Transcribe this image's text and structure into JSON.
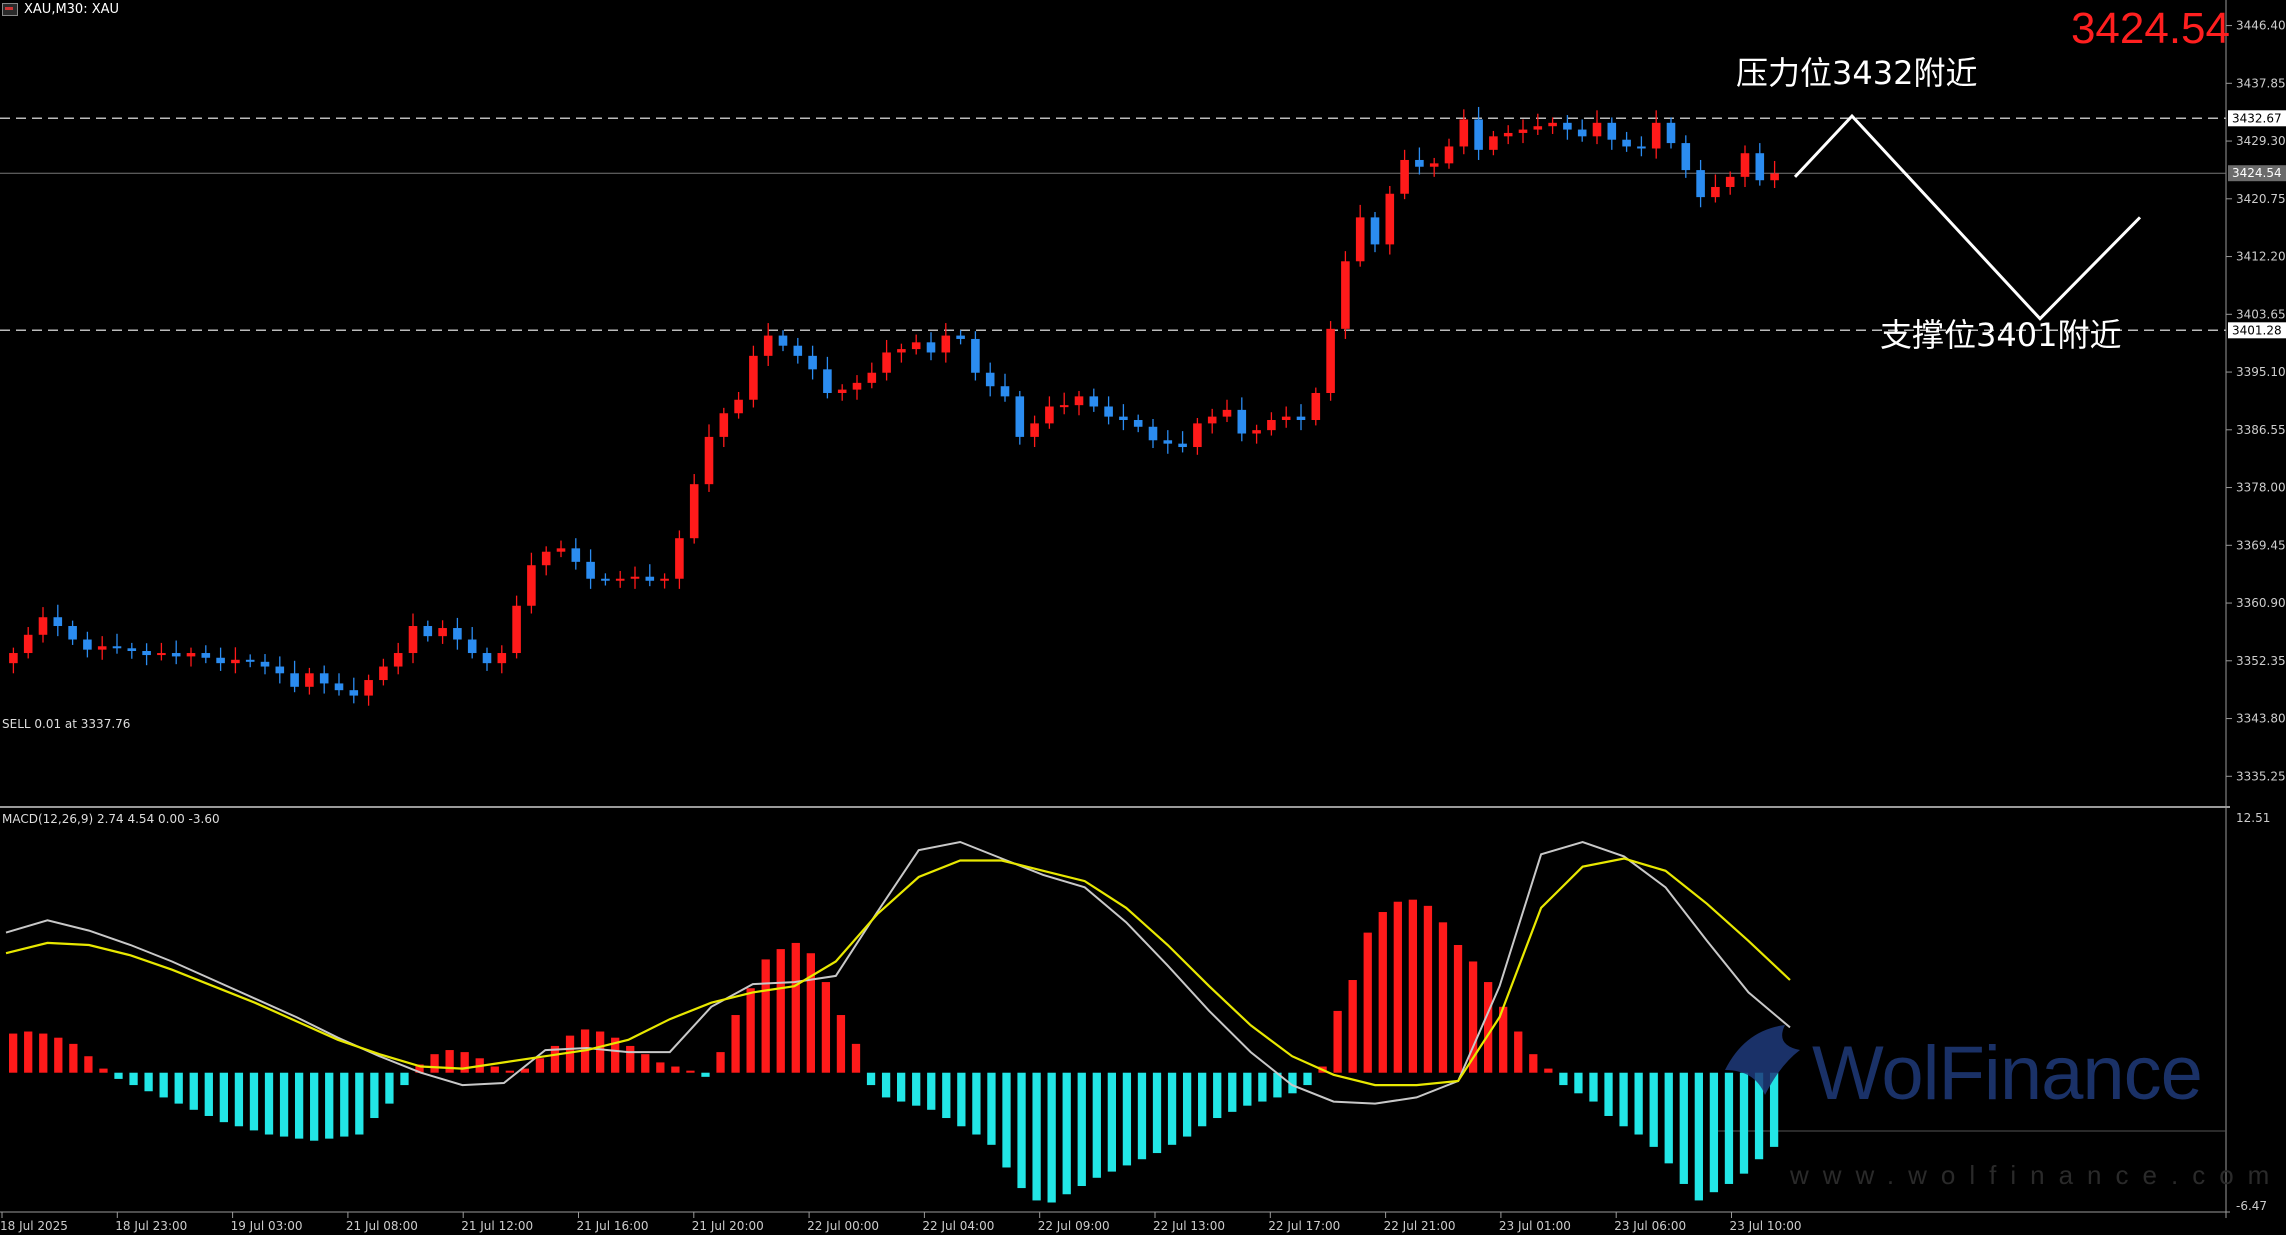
{
  "header": {
    "symbol_info": "XAU,M30: XAU",
    "current_price_large": "3424.54"
  },
  "annotations": {
    "resistance": "压力位3432附近",
    "support": "支撑位3401附近"
  },
  "order_label": "SELL 0.01 at 3337.76",
  "macd_label": "MACD(12,26,9) 2.74 4.54 0.00 -3.60",
  "watermark": {
    "brand": "WolFinance",
    "url": "www.wolfinance.com"
  },
  "colors": {
    "bull": "#ff1a1a",
    "bear": "#2b8cf0",
    "hist_pos": "#ff1a1a",
    "hist_neg": "#22e6e6",
    "macd_line": "#c8c8c8",
    "signal_line": "#e8e800"
  },
  "price_axis": {
    "labels": [
      "3446.40",
      "3437.85",
      "3429.30",
      "3420.75",
      "3412.20",
      "3403.65",
      "3395.10",
      "3386.55",
      "3378.00",
      "3369.45",
      "3360.90",
      "3352.35",
      "3343.80",
      "3335.25"
    ],
    "tags": {
      "resistance": "3432.67",
      "current": "3424.54",
      "support": "3401.28"
    }
  },
  "macd_axis": {
    "top": "12.51",
    "bottom": "-6.47"
  },
  "time_axis": [
    "18 Jul 2025",
    "18 Jul 23:00",
    "19 Jul 03:00",
    "21 Jul 08:00",
    "21 Jul 12:00",
    "21 Jul 16:00",
    "21 Jul 20:00",
    "22 Jul 00:00",
    "22 Jul 04:00",
    "22 Jul 09:00",
    "22 Jul 13:00",
    "22 Jul 17:00",
    "22 Jul 21:00",
    "23 Jul 01:00",
    "23 Jul 06:00",
    "23 Jul 10:00"
  ],
  "chart_data": {
    "type": "candlestick",
    "timeframe": "M30",
    "price_range": [
      3331.0,
      3449.0
    ],
    "levels": {
      "resistance": 3432.67,
      "current": 3424.54,
      "support": 3401.28
    },
    "closes": [
      3353.5,
      3356.2,
      3358.8,
      3357.5,
      3355.5,
      3354.0,
      3354.5,
      3354.2,
      3353.8,
      3353.2,
      3353.5,
      3353.0,
      3353.5,
      3352.8,
      3352.0,
      3352.5,
      3352.2,
      3351.5,
      3350.5,
      3348.5,
      3350.5,
      3349.0,
      3348.0,
      3347.2,
      3349.5,
      3351.5,
      3353.5,
      3357.5,
      3356.0,
      3357.2,
      3355.5,
      3353.5,
      3352.0,
      3353.5,
      3360.5,
      3366.5,
      3368.5,
      3369.0,
      3367.0,
      3364.5,
      3364.3,
      3364.5,
      3364.8,
      3364.2,
      3364.5,
      3370.5,
      3378.5,
      3385.5,
      3389.0,
      3391.0,
      3397.5,
      3400.5,
      3399.0,
      3397.5,
      3395.5,
      3392.0,
      3392.5,
      3393.5,
      3395.0,
      3398.0,
      3398.5,
      3399.5,
      3398.0,
      3400.5,
      3400.0,
      3395.0,
      3393.0,
      3391.5,
      3385.5,
      3387.5,
      3390.0,
      3390.2,
      3391.5,
      3390.0,
      3388.5,
      3388.0,
      3387.0,
      3385.0,
      3384.5,
      3384.0,
      3387.5,
      3388.5,
      3389.5,
      3386.0,
      3386.5,
      3388.0,
      3388.5,
      3388.0,
      3392.0,
      3401.5,
      3411.5,
      3418.0,
      3414.0,
      3421.5,
      3426.5,
      3425.5,
      3426.0,
      3428.5,
      3432.5,
      3428.0,
      3430.0,
      3430.5,
      3431.0,
      3431.5,
      3432.0,
      3431.0,
      3430.0,
      3432.0,
      3429.5,
      3428.5,
      3428.2,
      3432.0,
      3429.0,
      3425.0,
      3421.0,
      3422.5,
      3424.0,
      3427.5,
      3423.5,
      3424.5
    ],
    "opens_first": 3352.0,
    "time_labels": [
      "18 Jul 2025",
      "18 Jul 23:00",
      "19 Jul 03:00",
      "21 Jul 08:00",
      "21 Jul 12:00",
      "21 Jul 16:00",
      "21 Jul 20:00",
      "22 Jul 00:00",
      "22 Jul 04:00",
      "22 Jul 09:00",
      "22 Jul 13:00",
      "22 Jul 17:00",
      "22 Jul 21:00",
      "23 Jul 01:00",
      "23 Jul 06:00",
      "23 Jul 10:00"
    ],
    "projection_path": [
      3424.0,
      3433.0,
      3403.0,
      3418.0
    ],
    "macd": {
      "range": [
        -6.47,
        12.51
      ],
      "histogram": [
        1.9,
        2.0,
        1.9,
        1.7,
        1.4,
        0.8,
        0.2,
        -0.3,
        -0.6,
        -0.9,
        -1.2,
        -1.5,
        -1.8,
        -2.1,
        -2.4,
        -2.6,
        -2.8,
        -3.0,
        -3.1,
        -3.2,
        -3.3,
        -3.2,
        -3.1,
        -3.0,
        -2.2,
        -1.5,
        -0.6,
        0.4,
        0.9,
        1.1,
        1.0,
        0.7,
        0.3,
        0.1,
        0.2,
        0.7,
        1.3,
        1.8,
        2.1,
        2.0,
        1.7,
        1.3,
        0.9,
        0.5,
        0.3,
        0.1,
        -0.2,
        1.0,
        2.8,
        4.1,
        5.5,
        6.0,
        6.3,
        5.8,
        4.4,
        2.8,
        1.4,
        -0.6,
        -1.2,
        -1.4,
        -1.6,
        -1.8,
        -2.2,
        -2.6,
        -3.0,
        -3.5,
        -4.6,
        -5.6,
        -6.2,
        -6.3,
        -5.9,
        -5.5,
        -5.1,
        -4.8,
        -4.5,
        -4.2,
        -3.9,
        -3.5,
        -3.1,
        -2.6,
        -2.2,
        -1.9,
        -1.6,
        -1.4,
        -1.2,
        -1.0,
        -0.6,
        0.3,
        3.0,
        4.5,
        6.8,
        7.8,
        8.3,
        8.4,
        8.1,
        7.3,
        6.2,
        5.4,
        4.4,
        3.2,
        2.0,
        0.9,
        0.2,
        -0.6,
        -1.0,
        -1.4,
        -2.1,
        -2.6,
        -3.0,
        -3.6,
        -4.4,
        -5.4,
        -6.2,
        -5.8,
        -5.4,
        -4.9,
        -4.2,
        -3.6
      ],
      "macd_line": [
        6.8,
        7.4,
        6.9,
        6.2,
        5.4,
        4.5,
        3.6,
        2.7,
        1.7,
        0.8,
        0.0,
        -0.6,
        -0.5,
        1.1,
        1.2,
        1.0,
        1.0,
        3.2,
        4.3,
        4.4,
        4.7,
        7.8,
        10.8,
        11.2,
        10.4,
        9.6,
        9.0,
        7.3,
        5.2,
        3.0,
        1.0,
        -0.6,
        -1.4,
        -1.5,
        -1.2,
        -0.4,
        4.2,
        10.6,
        11.2,
        10.5,
        9.0,
        6.4,
        3.9,
        2.2
      ],
      "signal_line": [
        5.8,
        6.3,
        6.2,
        5.7,
        5.0,
        4.2,
        3.4,
        2.5,
        1.6,
        0.9,
        0.3,
        0.2,
        0.5,
        0.8,
        1.1,
        1.6,
        2.6,
        3.4,
        3.9,
        4.2,
        5.4,
        7.7,
        9.5,
        10.3,
        10.3,
        9.8,
        9.3,
        8.0,
        6.2,
        4.2,
        2.3,
        0.8,
        -0.1,
        -0.6,
        -0.6,
        -0.4,
        2.7,
        8.0,
        10.0,
        10.4,
        9.8,
        8.2,
        6.4,
        4.5
      ]
    }
  }
}
